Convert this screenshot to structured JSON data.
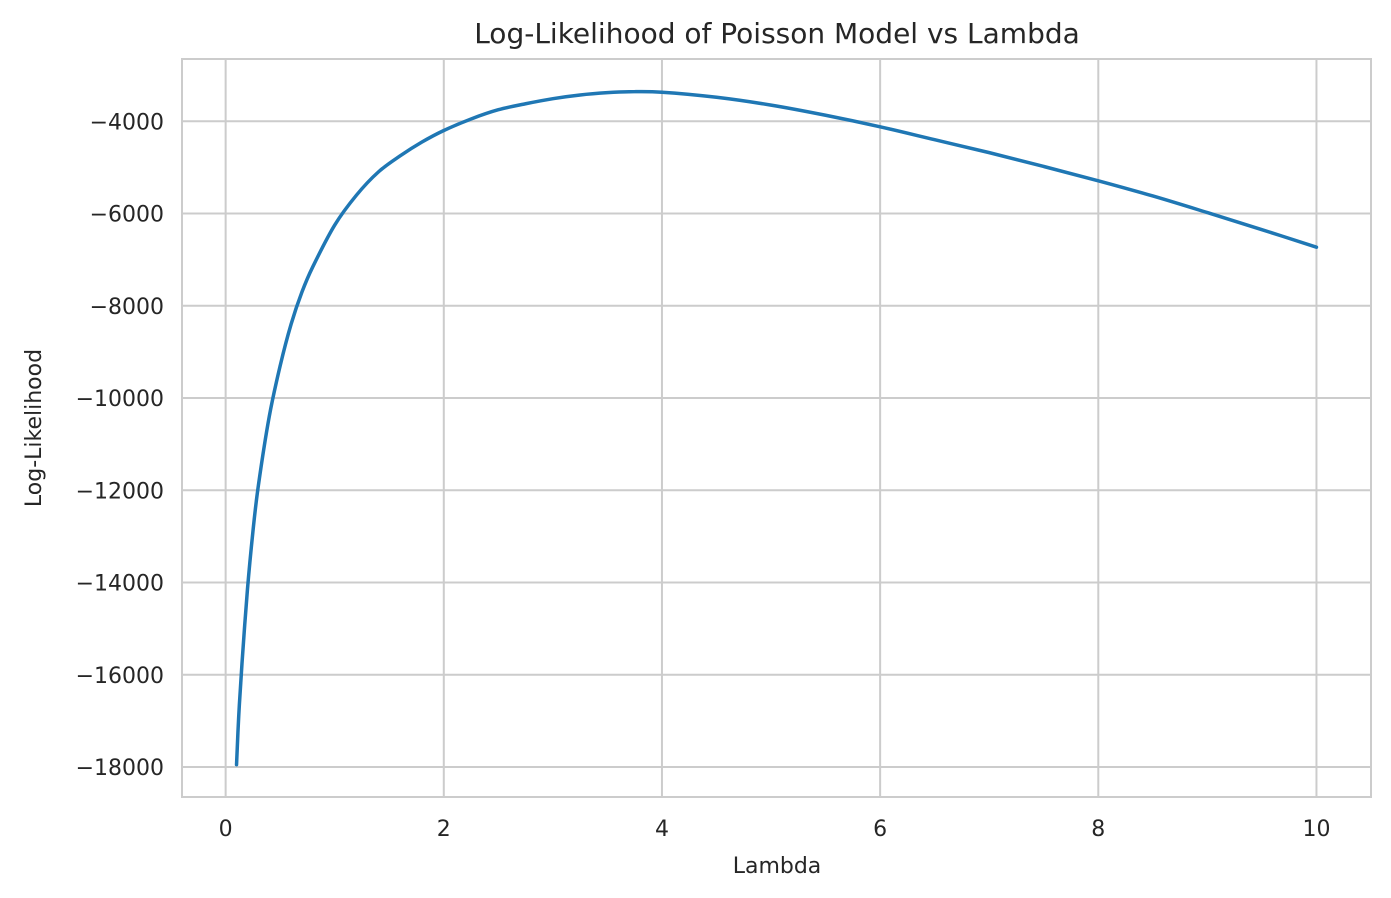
{
  "chart_data": {
    "type": "line",
    "title": "Log-Likelihood of Poisson Model vs Lambda",
    "xlabel": "Lambda",
    "ylabel": "Log-Likelihood",
    "xlim": [
      -0.4,
      10.5
    ],
    "ylim": [
      -18650,
      -2650
    ],
    "xticks": [
      0,
      2,
      4,
      6,
      8,
      10
    ],
    "yticks": [
      -18000,
      -16000,
      -14000,
      -12000,
      -10000,
      -8000,
      -6000,
      -4000
    ],
    "xtick_labels": [
      "0",
      "2",
      "4",
      "6",
      "8",
      "10"
    ],
    "ytick_labels": [
      "−18000",
      "−16000",
      "−14000",
      "−12000",
      "−10000",
      "−8000",
      "−6000",
      "−4000"
    ],
    "grid": true,
    "series": [
      {
        "color": "#1f77b4",
        "x": [
          0.1,
          0.12,
          0.15,
          0.2,
          0.25,
          0.3,
          0.4,
          0.5,
          0.6,
          0.7,
          0.8,
          1.0,
          1.2,
          1.4,
          1.6,
          1.8,
          2.0,
          2.25,
          2.5,
          2.75,
          3.0,
          3.25,
          3.5,
          3.7,
          4.0,
          4.5,
          5.0,
          5.5,
          6.0,
          6.5,
          7.0,
          7.5,
          8.0,
          8.5,
          9.0,
          9.5,
          10.0
        ],
        "y": [
          -17950,
          -16900,
          -15750,
          -14150,
          -12900,
          -11900,
          -10400,
          -9300,
          -8400,
          -7700,
          -7150,
          -6250,
          -5600,
          -5100,
          -4750,
          -4450,
          -4200,
          -3950,
          -3750,
          -3620,
          -3510,
          -3430,
          -3380,
          -3360,
          -3370,
          -3480,
          -3650,
          -3870,
          -4120,
          -4400,
          -4680,
          -4980,
          -5290,
          -5620,
          -5980,
          -6350,
          -6730
        ]
      }
    ]
  }
}
